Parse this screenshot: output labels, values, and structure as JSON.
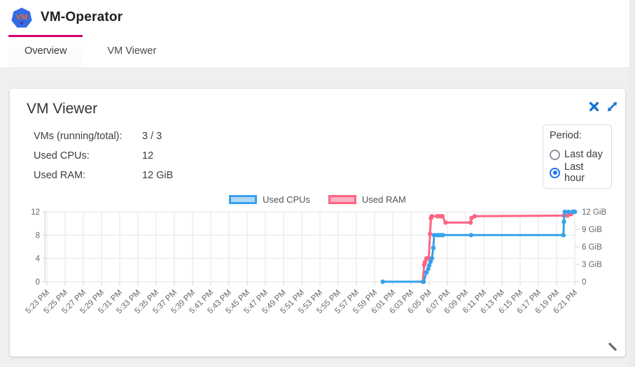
{
  "header": {
    "title": "VM-Operator",
    "logo_text": "VM"
  },
  "tabs": [
    {
      "label": "Overview",
      "active": true
    },
    {
      "label": "VM Viewer",
      "active": false
    }
  ],
  "card": {
    "title": "VM Viewer",
    "stats": [
      {
        "label": "VMs (running/total):",
        "value": "3 / 3"
      },
      {
        "label": "Used CPUs:",
        "value": "12"
      },
      {
        "label": "Used RAM:",
        "value": "12 GiB"
      }
    ],
    "period": {
      "label": "Period:",
      "options": [
        {
          "label": "Last day",
          "selected": false
        },
        {
          "label": "Last hour",
          "selected": true
        }
      ]
    }
  },
  "colors": {
    "tab_indicator": "#d0006f",
    "icon_blue": "#1574d4",
    "radio_checked": "#1a73e8",
    "cpu_line": "#36a2eb",
    "cpu_fill": "#b3d7f5",
    "ram_line": "#ff6384",
    "ram_fill": "#fbb1c4",
    "grid": "#e4e4e4",
    "axis_text": "#666666"
  },
  "chart_data": {
    "type": "line",
    "title": "",
    "x_axis": {
      "unit": "minutes after 5:23 PM",
      "range": [
        0,
        58
      ],
      "tick_interval_minutes": 2,
      "tick_labels": [
        "5:23 PM",
        "5:25 PM",
        "5:27 PM",
        "5:29 PM",
        "5:31 PM",
        "5:33 PM",
        "5:35 PM",
        "5:37 PM",
        "5:39 PM",
        "5:41 PM",
        "5:43 PM",
        "5:45 PM",
        "5:47 PM",
        "5:49 PM",
        "5:51 PM",
        "5:53 PM",
        "5:55 PM",
        "5:57 PM",
        "5:59 PM",
        "6:01 PM",
        "6:03 PM",
        "6:05 PM",
        "6:07 PM",
        "6:09 PM",
        "6:11 PM",
        "6:13 PM",
        "6:15 PM",
        "6:17 PM",
        "6:19 PM",
        "6:21 PM"
      ]
    },
    "left_axis": {
      "range": [
        0,
        12
      ],
      "ticks": [
        {
          "v": 0,
          "label": "0"
        },
        {
          "v": 4,
          "label": "4"
        },
        {
          "v": 8,
          "label": "8"
        },
        {
          "v": 12,
          "label": "12"
        }
      ]
    },
    "right_axis": {
      "range": [
        0,
        12
      ],
      "ticks": [
        {
          "v": 0,
          "label": "0"
        },
        {
          "v": 3,
          "label": "3 GiB"
        },
        {
          "v": 6,
          "label": "6 GiB"
        },
        {
          "v": 9,
          "label": "9 GiB"
        },
        {
          "v": 12,
          "label": "12 GiB"
        }
      ]
    },
    "legend": [
      {
        "name": "Used CPUs",
        "color": "#36a2eb",
        "fill": "#b3d7f5"
      },
      {
        "name": "Used RAM",
        "color": "#ff6384",
        "fill": "#fbb1c4"
      }
    ],
    "legend_position": "top",
    "grid": true,
    "series": [
      {
        "name": "Used RAM",
        "axis": "right",
        "color": "#ff6384",
        "points": [
          [
            41.3,
            0
          ],
          [
            41.45,
            2.9
          ],
          [
            41.55,
            3.4
          ],
          [
            41.7,
            4.0
          ],
          [
            41.95,
            4.0
          ],
          [
            42.1,
            8.2
          ],
          [
            42.2,
            10.9
          ],
          [
            42.3,
            11.25
          ],
          [
            42.9,
            11.25
          ],
          [
            43.2,
            11.25
          ],
          [
            43.45,
            11.25
          ],
          [
            43.8,
            10.15
          ],
          [
            46.55,
            10.15
          ],
          [
            46.65,
            10.95
          ],
          [
            47.0,
            11.25
          ],
          [
            56.8,
            11.35
          ],
          [
            57.2,
            11.35
          ],
          [
            57.6,
            11.6
          ],
          [
            58,
            12
          ]
        ]
      },
      {
        "name": "Used CPUs",
        "axis": "left",
        "color": "#36a2eb",
        "points": [
          [
            36.9,
            0
          ],
          [
            41.4,
            0
          ],
          [
            41.7,
            1.6
          ],
          [
            41.9,
            2.2
          ],
          [
            42.0,
            2.8
          ],
          [
            42.15,
            3.4
          ],
          [
            42.3,
            4.0
          ],
          [
            42.45,
            5.8
          ],
          [
            42.55,
            8
          ],
          [
            42.9,
            8
          ],
          [
            43.2,
            8
          ],
          [
            43.5,
            8
          ],
          [
            46.6,
            8
          ],
          [
            56.75,
            8
          ],
          [
            56.8,
            10.3
          ],
          [
            56.9,
            12
          ],
          [
            57.3,
            12
          ],
          [
            57.75,
            12
          ],
          [
            58,
            12
          ]
        ]
      }
    ]
  }
}
